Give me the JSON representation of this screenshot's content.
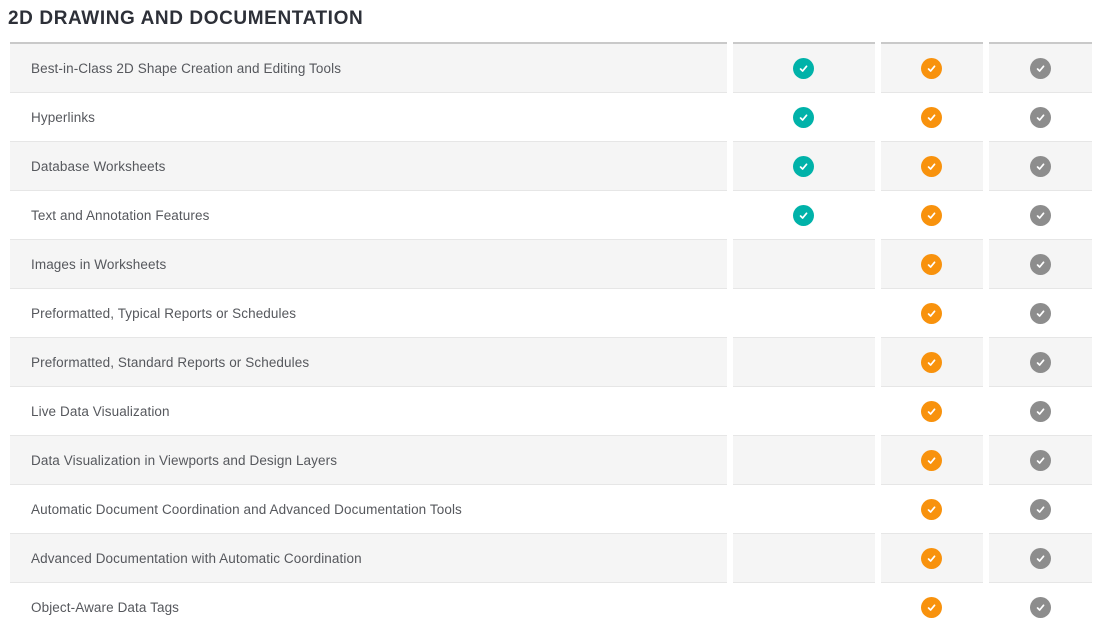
{
  "section": {
    "title": "2D DRAWING AND DOCUMENTATION"
  },
  "colors": {
    "teal": "#00B2A9",
    "orange": "#F8920D",
    "gray": "#8D8D8D",
    "row_alt_bg": "#F5F5F5",
    "table_top_border": "#C9C9C9",
    "row_separator": "#E6E6E6",
    "label_text": "#56585D",
    "title_text": "#2D3038"
  },
  "icons": {
    "check": "check-icon"
  },
  "table": {
    "columns": [
      {
        "name": "column-1",
        "check_color": "teal"
      },
      {
        "name": "column-2",
        "check_color": "orange"
      },
      {
        "name": "column-3",
        "check_color": "gray"
      }
    ],
    "rows": [
      {
        "label": "Best-in-Class 2D Shape Creation and Editing Tools",
        "checks": [
          "teal",
          "orange",
          "gray"
        ]
      },
      {
        "label": "Hyperlinks",
        "checks": [
          "teal",
          "orange",
          "gray"
        ]
      },
      {
        "label": "Database Worksheets",
        "checks": [
          "teal",
          "orange",
          "gray"
        ]
      },
      {
        "label": "Text and Annotation Features",
        "checks": [
          "teal",
          "orange",
          "gray"
        ]
      },
      {
        "label": "Images in Worksheets",
        "checks": [
          null,
          "orange",
          "gray"
        ]
      },
      {
        "label": "Preformatted, Typical Reports or Schedules",
        "checks": [
          null,
          "orange",
          "gray"
        ]
      },
      {
        "label": "Preformatted, Standard Reports or Schedules",
        "checks": [
          null,
          "orange",
          "gray"
        ]
      },
      {
        "label": "Live Data Visualization",
        "checks": [
          null,
          "orange",
          "gray"
        ]
      },
      {
        "label": "Data Visualization in Viewports and Design Layers",
        "checks": [
          null,
          "orange",
          "gray"
        ]
      },
      {
        "label": "Automatic Document Coordination and Advanced Documentation Tools",
        "checks": [
          null,
          "orange",
          "gray"
        ]
      },
      {
        "label": "Advanced Documentation with Automatic Coordination",
        "checks": [
          null,
          "orange",
          "gray"
        ]
      },
      {
        "label": "Object-Aware Data Tags",
        "checks": [
          null,
          "orange",
          "gray"
        ]
      }
    ]
  }
}
